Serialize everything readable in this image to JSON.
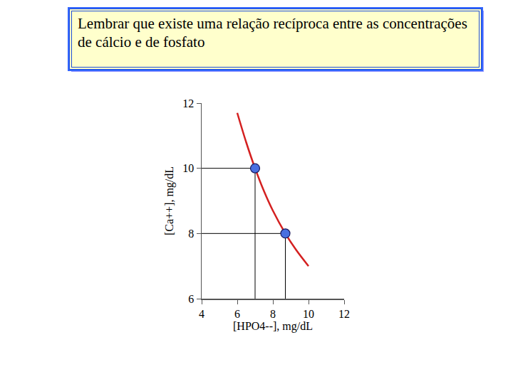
{
  "chart_data": {
    "type": "line",
    "title": "Lembrar que existe uma relação recíproca entre as concentrações de cálcio e de fosfato",
    "x_label": "[HPO4--], mg/dL",
    "y_label": "[Ca++], mg/dL",
    "series": [
      {
        "type": "line",
        "color": "#d42020",
        "x": [
          6.0,
          6.5,
          7.0,
          7.5,
          8.0,
          8.7,
          9.3,
          10.0
        ],
        "values": [
          11.7,
          10.8,
          10.0,
          9.3,
          8.7,
          8.0,
          7.5,
          7.0
        ]
      },
      {
        "type": "scatter",
        "color": "#4a6fe0",
        "marker": "circle",
        "x": [
          7.0,
          8.7
        ],
        "values": [
          10.0,
          8.0
        ]
      }
    ],
    "xlim": [
      4,
      12
    ],
    "xticks": [
      4,
      6,
      8,
      10,
      12
    ],
    "ylim": [
      6,
      12
    ],
    "yticks": [
      6,
      8,
      10,
      12
    ],
    "grid": false
  }
}
